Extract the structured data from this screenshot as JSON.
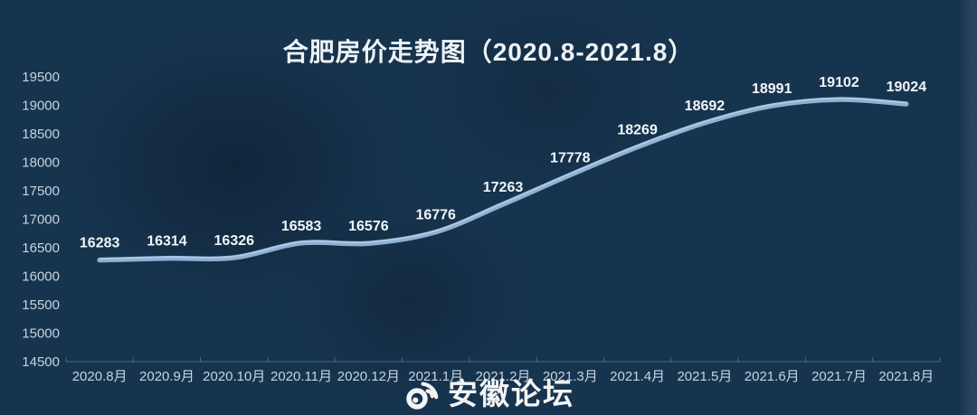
{
  "title": "合肥房价走势图（2020.8-2021.8）",
  "watermark": {
    "icon": "weibo-icon",
    "text": "安徽论坛"
  },
  "colors": {
    "background": "#17344f",
    "title_text": "#eef3f6",
    "axis_text": "#c6d4de",
    "data_label_text": "#f2f6f9",
    "line": "#8db0d3",
    "line_highlight": "#c3d9ed",
    "axis_line": "#7e9cb5",
    "watermark_text": "#ffffff"
  },
  "chart_data": {
    "type": "line",
    "title": "合肥房价走势图（2020.8-2021.8）",
    "categories": [
      "2020.8月",
      "2020.9月",
      "2020.10月",
      "2020.11月",
      "2020.12月",
      "2021.1月",
      "2021.2月",
      "2021.3月",
      "2021.4月",
      "2021.5月",
      "2021.6月",
      "2021.7月",
      "2021.8月"
    ],
    "values": [
      16283,
      16314,
      16326,
      16583,
      16576,
      16776,
      17263,
      17778,
      18269,
      18692,
      18991,
      19102,
      19024
    ],
    "y_ticks": [
      14500,
      15000,
      15500,
      16000,
      16500,
      17000,
      17500,
      18000,
      18500,
      19000,
      19500
    ],
    "ylim": [
      14500,
      19500
    ],
    "xlabel": "",
    "ylabel": "",
    "grid": false,
    "legend": false,
    "smooth": true,
    "data_labels": true
  }
}
